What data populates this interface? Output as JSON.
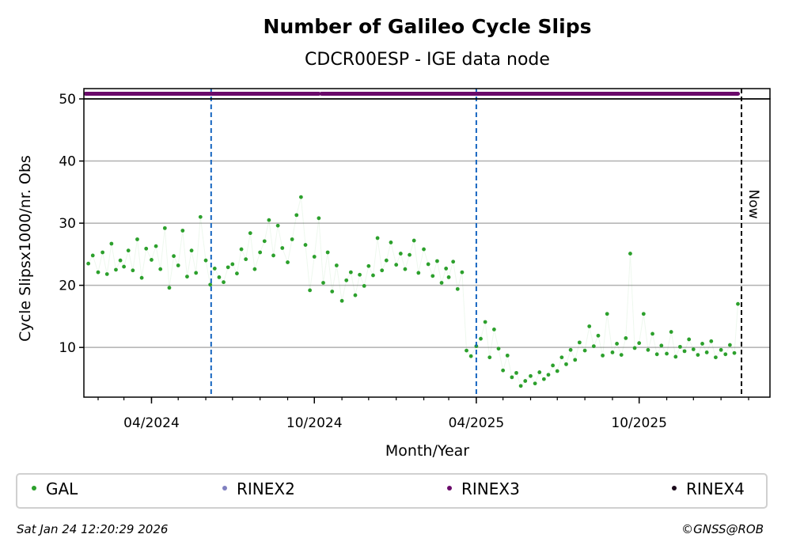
{
  "chart_data": {
    "type": "scatter",
    "title": "Number of Galileo Cycle Slips",
    "subtitle": "CDCR00ESP - IGE data node",
    "xlabel": "Month/Year",
    "ylabel": "Cycle Slipsx1000/nr. Obs",
    "ylim": [
      2,
      50
    ],
    "xlim": [
      "2024-01-16",
      "2026-02-25"
    ],
    "yticks": [
      10,
      20,
      30,
      40,
      50
    ],
    "xticks": [
      {
        "date": "2024-04-01",
        "label": "04/2024"
      },
      {
        "date": "2024-10-01",
        "label": "10/2024"
      },
      {
        "date": "2025-04-01",
        "label": "04/2025"
      },
      {
        "date": "2025-10-01",
        "label": "10/2025"
      }
    ],
    "grid": "horizontal",
    "legend_placement": "bottom",
    "colors": {
      "GAL": "#2ca02c",
      "RINEX2": "#8080c0",
      "RINEX3": "#6a0a6a",
      "RINEX4": "#1a0a1a",
      "event_line": "#1565c0",
      "now_line": "#000000",
      "grid": "#b0b0b0"
    },
    "legend": [
      "GAL",
      "RINEX2",
      "RINEX3",
      "RINEX4"
    ],
    "event_lines": [
      "2024-06-07",
      "2025-04-01"
    ],
    "now_line": {
      "date": "2026-01-24",
      "label": "Now"
    },
    "rinex3_value": 51,
    "rinex3_coverage": [
      [
        "2024-01-18",
        "2024-10-06"
      ],
      [
        "2024-10-09",
        "2026-01-20"
      ]
    ],
    "series": [
      {
        "name": "GAL",
        "points": [
          [
            "2024-01-21",
            23.5
          ],
          [
            "2024-01-26",
            24.8
          ],
          [
            "2024-02-01",
            22.1
          ],
          [
            "2024-02-06",
            25.3
          ],
          [
            "2024-02-11",
            21.8
          ],
          [
            "2024-02-16",
            26.7
          ],
          [
            "2024-02-21",
            22.5
          ],
          [
            "2024-02-26",
            24.0
          ],
          [
            "2024-03-01",
            23.0
          ],
          [
            "2024-03-06",
            25.6
          ],
          [
            "2024-03-11",
            22.4
          ],
          [
            "2024-03-16",
            27.4
          ],
          [
            "2024-03-21",
            21.2
          ],
          [
            "2024-03-26",
            25.9
          ],
          [
            "2024-04-01",
            24.1
          ],
          [
            "2024-04-06",
            26.3
          ],
          [
            "2024-04-11",
            22.6
          ],
          [
            "2024-04-16",
            29.2
          ],
          [
            "2024-04-21",
            19.6
          ],
          [
            "2024-04-26",
            24.7
          ],
          [
            "2024-05-01",
            23.2
          ],
          [
            "2024-05-06",
            28.8
          ],
          [
            "2024-05-11",
            21.4
          ],
          [
            "2024-05-16",
            25.6
          ],
          [
            "2024-05-21",
            22.0
          ],
          [
            "2024-05-26",
            31.0
          ],
          [
            "2024-06-01",
            24.0
          ],
          [
            "2024-06-06",
            20.1
          ],
          [
            "2024-06-11",
            22.7
          ],
          [
            "2024-06-16",
            21.3
          ],
          [
            "2024-06-21",
            20.5
          ],
          [
            "2024-06-26",
            22.9
          ],
          [
            "2024-07-01",
            23.4
          ],
          [
            "2024-07-06",
            21.9
          ],
          [
            "2024-07-11",
            25.8
          ],
          [
            "2024-07-16",
            24.2
          ],
          [
            "2024-07-21",
            28.4
          ],
          [
            "2024-07-26",
            22.6
          ],
          [
            "2024-08-01",
            25.3
          ],
          [
            "2024-08-06",
            27.1
          ],
          [
            "2024-08-11",
            30.5
          ],
          [
            "2024-08-16",
            24.8
          ],
          [
            "2024-08-21",
            29.6
          ],
          [
            "2024-08-26",
            26.0
          ],
          [
            "2024-09-01",
            23.7
          ],
          [
            "2024-09-06",
            27.4
          ],
          [
            "2024-09-11",
            31.3
          ],
          [
            "2024-09-16",
            34.2
          ],
          [
            "2024-09-21",
            26.5
          ],
          [
            "2024-09-26",
            19.2
          ],
          [
            "2024-10-01",
            24.6
          ],
          [
            "2024-10-06",
            30.8
          ],
          [
            "2024-10-11",
            20.4
          ],
          [
            "2024-10-16",
            25.3
          ],
          [
            "2024-10-21",
            19.0
          ],
          [
            "2024-10-26",
            23.2
          ],
          [
            "2024-11-01",
            17.5
          ],
          [
            "2024-11-06",
            20.8
          ],
          [
            "2024-11-11",
            22.1
          ],
          [
            "2024-11-16",
            18.4
          ],
          [
            "2024-11-21",
            21.7
          ],
          [
            "2024-11-26",
            19.9
          ],
          [
            "2024-12-01",
            23.1
          ],
          [
            "2024-12-06",
            21.6
          ],
          [
            "2024-12-11",
            27.6
          ],
          [
            "2024-12-16",
            22.4
          ],
          [
            "2024-12-21",
            24.0
          ],
          [
            "2024-12-26",
            26.9
          ],
          [
            "2025-01-01",
            23.3
          ],
          [
            "2025-01-06",
            25.1
          ],
          [
            "2025-01-11",
            22.6
          ],
          [
            "2025-01-16",
            24.9
          ],
          [
            "2025-01-21",
            27.2
          ],
          [
            "2025-01-26",
            22.0
          ],
          [
            "2025-02-01",
            25.8
          ],
          [
            "2025-02-06",
            23.4
          ],
          [
            "2025-02-11",
            21.5
          ],
          [
            "2025-02-16",
            23.9
          ],
          [
            "2025-02-21",
            20.4
          ],
          [
            "2025-02-26",
            22.7
          ],
          [
            "2025-03-01",
            21.3
          ],
          [
            "2025-03-06",
            23.8
          ],
          [
            "2025-03-11",
            19.4
          ],
          [
            "2025-03-16",
            22.1
          ],
          [
            "2025-03-21",
            9.5
          ],
          [
            "2025-03-26",
            8.6
          ],
          [
            "2025-04-01",
            10.2
          ],
          [
            "2025-04-06",
            11.4
          ],
          [
            "2025-04-11",
            14.1
          ],
          [
            "2025-04-16",
            8.4
          ],
          [
            "2025-04-21",
            12.9
          ],
          [
            "2025-04-26",
            9.8
          ],
          [
            "2025-05-01",
            6.3
          ],
          [
            "2025-05-06",
            8.7
          ],
          [
            "2025-05-11",
            5.2
          ],
          [
            "2025-05-16",
            5.9
          ],
          [
            "2025-05-21",
            3.8
          ],
          [
            "2025-05-26",
            4.6
          ],
          [
            "2025-06-01",
            5.4
          ],
          [
            "2025-06-06",
            4.2
          ],
          [
            "2025-06-11",
            6.0
          ],
          [
            "2025-06-16",
            4.9
          ],
          [
            "2025-06-21",
            5.6
          ],
          [
            "2025-06-26",
            7.1
          ],
          [
            "2025-07-01",
            6.2
          ],
          [
            "2025-07-06",
            8.4
          ],
          [
            "2025-07-11",
            7.3
          ],
          [
            "2025-07-16",
            9.6
          ],
          [
            "2025-07-21",
            8.0
          ],
          [
            "2025-07-26",
            10.8
          ],
          [
            "2025-08-01",
            9.5
          ],
          [
            "2025-08-06",
            13.4
          ],
          [
            "2025-08-11",
            10.2
          ],
          [
            "2025-08-16",
            11.9
          ],
          [
            "2025-08-21",
            8.7
          ],
          [
            "2025-08-26",
            15.4
          ],
          [
            "2025-09-01",
            9.2
          ],
          [
            "2025-09-06",
            10.6
          ],
          [
            "2025-09-11",
            8.8
          ],
          [
            "2025-09-16",
            11.5
          ],
          [
            "2025-09-21",
            25.1
          ],
          [
            "2025-09-26",
            9.9
          ],
          [
            "2025-10-01",
            10.7
          ],
          [
            "2025-10-06",
            15.4
          ],
          [
            "2025-10-11",
            9.6
          ],
          [
            "2025-10-16",
            12.2
          ],
          [
            "2025-10-21",
            8.9
          ],
          [
            "2025-10-26",
            10.3
          ],
          [
            "2025-11-01",
            9.0
          ],
          [
            "2025-11-06",
            12.5
          ],
          [
            "2025-11-11",
            8.5
          ],
          [
            "2025-11-16",
            10.1
          ],
          [
            "2025-11-21",
            9.4
          ],
          [
            "2025-11-26",
            11.3
          ],
          [
            "2025-12-01",
            9.7
          ],
          [
            "2025-12-06",
            8.8
          ],
          [
            "2025-12-11",
            10.6
          ],
          [
            "2025-12-16",
            9.2
          ],
          [
            "2025-12-21",
            11.0
          ],
          [
            "2025-12-26",
            8.4
          ],
          [
            "2026-01-01",
            9.6
          ],
          [
            "2026-01-06",
            8.9
          ],
          [
            "2026-01-11",
            10.4
          ],
          [
            "2026-01-16",
            9.1
          ],
          [
            "2026-01-20",
            17.0
          ]
        ]
      }
    ]
  },
  "footer": {
    "timestamp": "Sat Jan 24 12:20:29 2026",
    "copyright": "©GNSS@ROB"
  }
}
